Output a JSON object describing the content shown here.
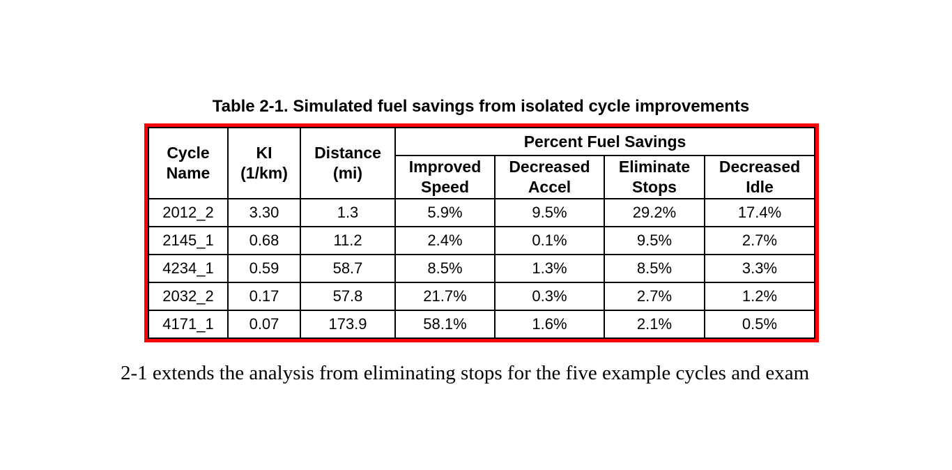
{
  "table": {
    "title": "Table 2-1. Simulated fuel savings from isolated cycle improvements",
    "frame_color": "#ff0000",
    "grid_color": "#000000",
    "header": {
      "cycle": "Cycle\nName",
      "ki": "KI\n(1/km)",
      "distance": "Distance\n(mi)",
      "group": "Percent Fuel Savings",
      "sub": [
        "Improved\nSpeed",
        "Decreased\nAccel",
        "Eliminate\nStops",
        "Decreased\nIdle"
      ]
    },
    "rows": [
      [
        "2012_2",
        "3.30",
        "1.3",
        "5.9%",
        "9.5%",
        "29.2%",
        "17.4%"
      ],
      [
        "2145_1",
        "0.68",
        "11.2",
        "2.4%",
        "0.1%",
        "9.5%",
        "2.7%"
      ],
      [
        "4234_1",
        "0.59",
        "58.7",
        "8.5%",
        "1.3%",
        "8.5%",
        "3.3%"
      ],
      [
        "2032_2",
        "0.17",
        "57.8",
        "21.7%",
        "0.3%",
        "2.7%",
        "1.2%"
      ],
      [
        "4171_1",
        "0.07",
        "173.9",
        "58.1%",
        "1.6%",
        "2.1%",
        "0.5%"
      ]
    ]
  },
  "body_text": "2-1 extends the analysis from eliminating stops for the five example cycles and exam"
}
